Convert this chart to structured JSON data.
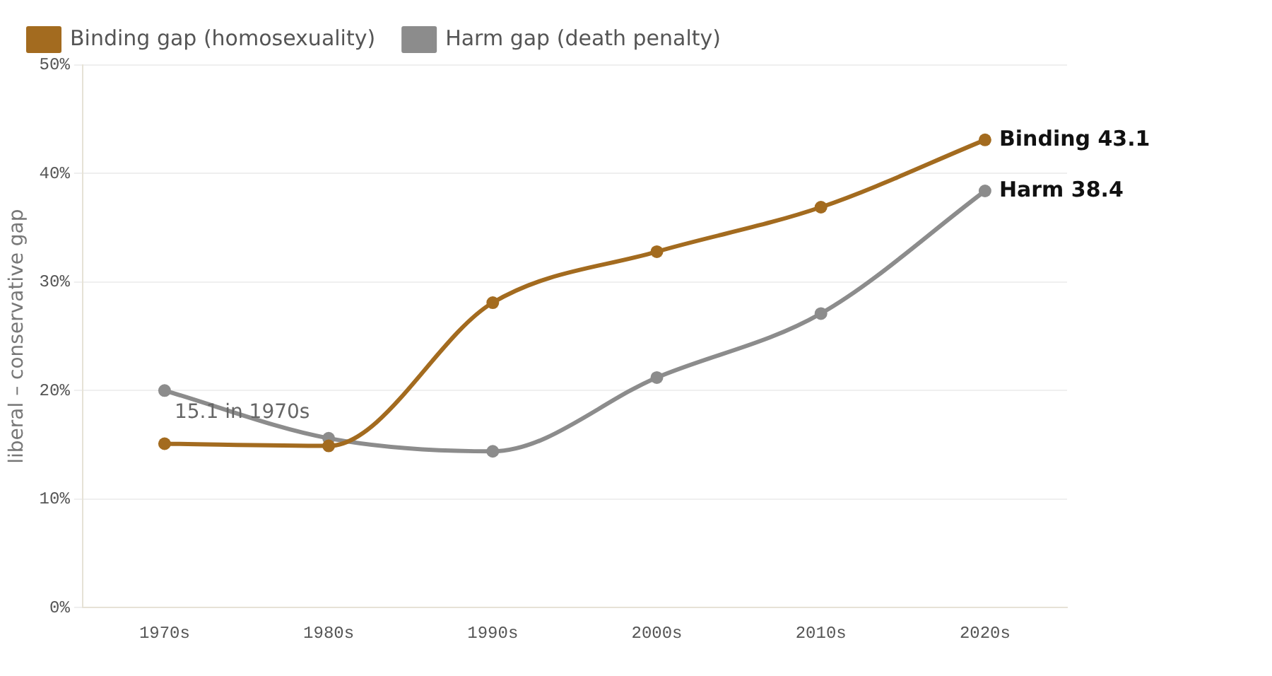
{
  "chart_data": {
    "type": "line",
    "ylabel": "liberal – conservative gap",
    "categories": [
      "1970s",
      "1980s",
      "1990s",
      "2000s",
      "2010s",
      "2020s"
    ],
    "series": [
      {
        "name": "Binding gap (homosexuality)",
        "color": "#a36b1f",
        "values": [
          15.1,
          14.9,
          28.1,
          32.8,
          36.9,
          43.1
        ]
      },
      {
        "name": "Harm gap (death penalty)",
        "color": "#8c8c8c",
        "values": [
          20.0,
          15.6,
          14.4,
          21.2,
          27.1,
          38.4
        ]
      }
    ],
    "ylim": [
      0,
      50
    ],
    "yticks": [
      {
        "value": 0,
        "label": "0%"
      },
      {
        "value": 10,
        "label": "10%"
      },
      {
        "value": 20,
        "label": "20%"
      },
      {
        "value": 30,
        "label": "30%"
      },
      {
        "value": 40,
        "label": "40%"
      },
      {
        "value": 50,
        "label": "50%"
      }
    ],
    "grid": "y",
    "legend": "top left",
    "marker": "circle",
    "line_style": "solid",
    "annotations": [
      {
        "text": "15.1 in 1970s",
        "x": "1970s",
        "y": 15.1
      },
      {
        "text": "Binding 43.1",
        "x": "2020s",
        "y": 43.1
      },
      {
        "text": "Harm 38.4",
        "x": "2020s",
        "y": 38.4
      }
    ]
  }
}
